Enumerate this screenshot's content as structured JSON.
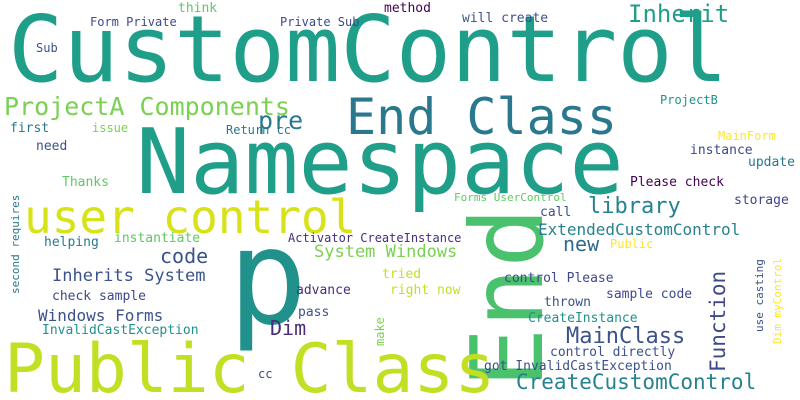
{
  "words": [
    {
      "text": "CustomControl",
      "color": "#1f9e89"
    },
    {
      "text": "Namespace",
      "color": "#1f9e89"
    },
    {
      "text": "p",
      "color": "#21918c"
    },
    {
      "text": "End",
      "color": "#4ac16d"
    },
    {
      "text": "End Class",
      "color": "#2a788e"
    },
    {
      "text": "Public Class",
      "color": "#c2df23"
    },
    {
      "text": "user control",
      "color": "#d8e219"
    },
    {
      "text": "ProjectA Components",
      "color": "#7ad151"
    },
    {
      "text": "pre",
      "color": "#2a788e"
    },
    {
      "text": "Inherit",
      "color": "#1f9e89"
    },
    {
      "text": "library",
      "color": "#26828e"
    },
    {
      "text": "code",
      "color": "#3b528b"
    },
    {
      "text": "new",
      "color": "#31688e"
    },
    {
      "text": "Function",
      "color": "#3e4989"
    },
    {
      "text": "ExtendedCustomControl",
      "color": "#26828e"
    },
    {
      "text": "System Windows",
      "color": "#7ad151"
    },
    {
      "text": "Inherits System",
      "color": "#3b528b"
    },
    {
      "text": "Windows Forms",
      "color": "#3b528b"
    },
    {
      "text": "Dim",
      "color": "#472d7b"
    },
    {
      "text": "MainClass",
      "color": "#3b528b"
    },
    {
      "text": "CreateCustomControl",
      "color": "#26828e"
    },
    {
      "text": "Form Private",
      "color": "#3e4989"
    },
    {
      "text": "think",
      "color": "#5ec962"
    },
    {
      "text": "Private Sub",
      "color": "#3e4989"
    },
    {
      "text": "method",
      "color": "#440154"
    },
    {
      "text": "will create",
      "color": "#3b528b"
    },
    {
      "text": "Sub",
      "color": "#3b528b"
    },
    {
      "text": "ProjectB",
      "color": "#21918c"
    },
    {
      "text": "first",
      "color": "#2a788e"
    },
    {
      "text": "issue",
      "color": "#7ad151"
    },
    {
      "text": "Return cc",
      "color": "#2a788e"
    },
    {
      "text": "MainForm",
      "color": "#fde725"
    },
    {
      "text": "need",
      "color": "#3b528b"
    },
    {
      "text": "instance",
      "color": "#3e4989"
    },
    {
      "text": "update",
      "color": "#2a788e"
    },
    {
      "text": "Thanks",
      "color": "#5ec962"
    },
    {
      "text": "Please check",
      "color": "#440154"
    },
    {
      "text": "storage",
      "color": "#414487"
    },
    {
      "text": "second requires",
      "color": "#2a788e"
    },
    {
      "text": "Forms UserControl",
      "color": "#5ec962"
    },
    {
      "text": "call",
      "color": "#3b528b"
    },
    {
      "text": "helping",
      "color": "#2a788e"
    },
    {
      "text": "instantiate",
      "color": "#5ec962"
    },
    {
      "text": "Activator CreateInstance",
      "color": "#472d7b"
    },
    {
      "text": "Public",
      "color": "#fde725"
    },
    {
      "text": "use casting",
      "color": "#3b528b"
    },
    {
      "text": "Dim myControl",
      "color": "#fde725"
    },
    {
      "text": "tried",
      "color": "#c2df23"
    },
    {
      "text": "control Please",
      "color": "#3e4989"
    },
    {
      "text": "advance",
      "color": "#472d7b"
    },
    {
      "text": "check sample",
      "color": "#3e4989"
    },
    {
      "text": "right now",
      "color": "#c2df23"
    },
    {
      "text": "sample code",
      "color": "#3e4989"
    },
    {
      "text": "thrown",
      "color": "#3b528b"
    },
    {
      "text": "pass",
      "color": "#3b528b"
    },
    {
      "text": "CreateInstance",
      "color": "#21918c"
    },
    {
      "text": "InvalidCastException",
      "color": "#21918c"
    },
    {
      "text": "make",
      "color": "#7ad151"
    },
    {
      "text": "control directly",
      "color": "#3b528b"
    },
    {
      "text": "got InvalidCastException",
      "color": "#3b528b"
    },
    {
      "text": "cc",
      "color": "#3e4989"
    }
  ]
}
